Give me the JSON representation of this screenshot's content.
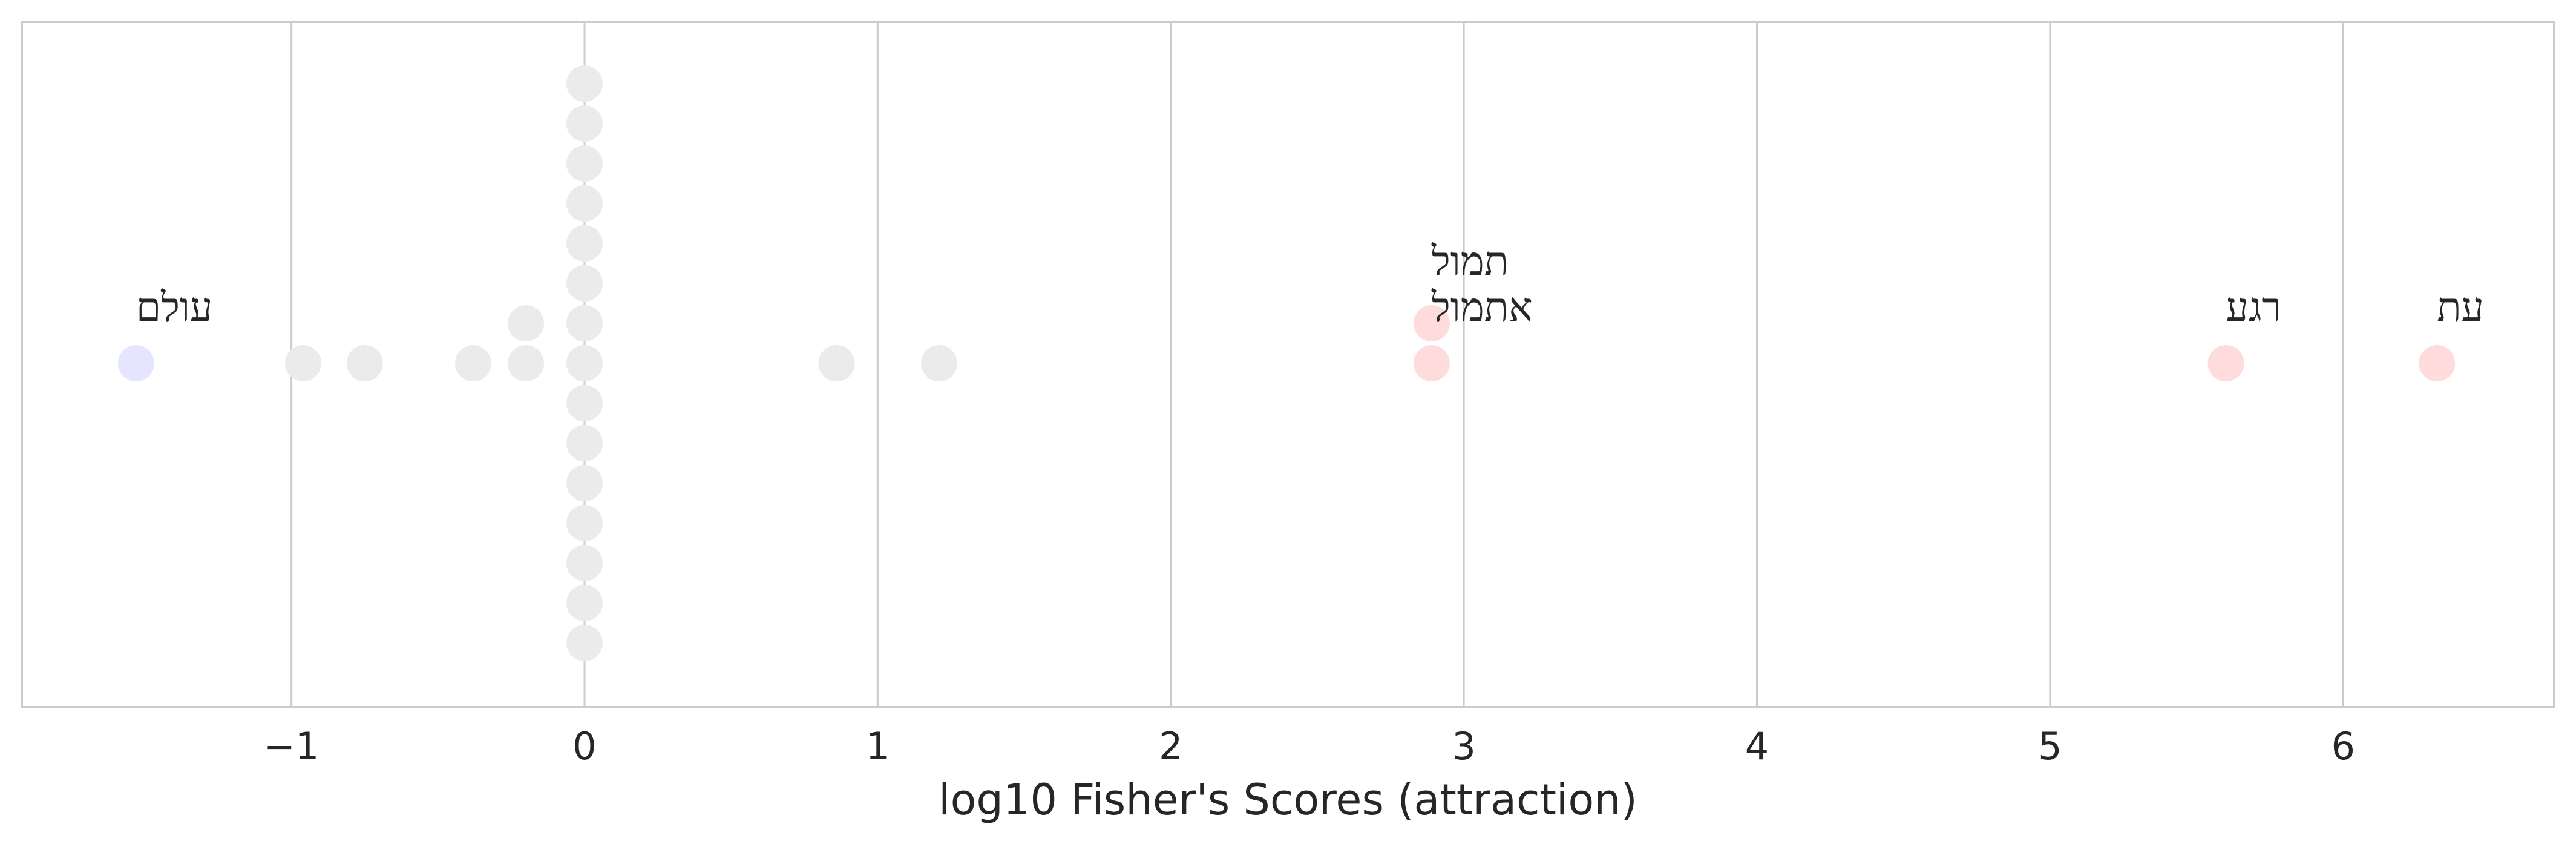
{
  "chart_data": {
    "type": "scatter",
    "title": "",
    "xlabel": "log10 Fisher's Scores (attraction)",
    "ylabel": "",
    "xlim": [
      -1.92,
      6.72
    ],
    "xticks": [
      -1,
      0,
      1,
      2,
      3,
      4,
      5,
      6
    ],
    "xtick_labels": [
      "−1",
      "0",
      "1",
      "2",
      "3",
      "4",
      "5",
      "6"
    ],
    "grid": "vertical",
    "colors": {
      "repulsion": "#e5e5ff",
      "attraction": "#ffdcdc",
      "neutral": "#ebebeb",
      "grid": "#cccccc",
      "frame": "#cccccc"
    },
    "points": [
      {
        "x": -1.53,
        "row": 0,
        "group": "repulsion",
        "label": "עולם"
      },
      {
        "x": -0.96,
        "row": 0,
        "group": "neutral"
      },
      {
        "x": -0.75,
        "row": 0,
        "group": "neutral"
      },
      {
        "x": -0.38,
        "row": 0,
        "group": "neutral"
      },
      {
        "x": -0.2,
        "row": 0,
        "group": "neutral"
      },
      {
        "x": -0.2,
        "row": 1,
        "group": "neutral"
      },
      {
        "x": 0,
        "row": 0,
        "group": "neutral"
      },
      {
        "x": 0,
        "row": 1,
        "group": "neutral"
      },
      {
        "x": 0,
        "row": 2,
        "group": "neutral"
      },
      {
        "x": 0,
        "row": 3,
        "group": "neutral"
      },
      {
        "x": 0,
        "row": 4,
        "group": "neutral"
      },
      {
        "x": 0,
        "row": 5,
        "group": "neutral"
      },
      {
        "x": 0,
        "row": 6,
        "group": "neutral"
      },
      {
        "x": 0,
        "row": 7,
        "group": "neutral"
      },
      {
        "x": 0,
        "row": -1,
        "group": "neutral"
      },
      {
        "x": 0,
        "row": -2,
        "group": "neutral"
      },
      {
        "x": 0,
        "row": -3,
        "group": "neutral"
      },
      {
        "x": 0,
        "row": -4,
        "group": "neutral"
      },
      {
        "x": 0,
        "row": -5,
        "group": "neutral"
      },
      {
        "x": 0,
        "row": -6,
        "group": "neutral"
      },
      {
        "x": 0,
        "row": -7,
        "group": "neutral"
      },
      {
        "x": 0.86,
        "row": 0,
        "group": "neutral"
      },
      {
        "x": 1.21,
        "row": 0,
        "group": "neutral"
      },
      {
        "x": 2.89,
        "row": 0,
        "group": "attraction",
        "label": "אתמול"
      },
      {
        "x": 2.89,
        "row": 1,
        "group": "attraction",
        "label": "תמול"
      },
      {
        "x": 5.6,
        "row": 0,
        "group": "attraction",
        "label": "רגע"
      },
      {
        "x": 6.32,
        "row": 0,
        "group": "attraction",
        "label": "עת"
      }
    ]
  }
}
